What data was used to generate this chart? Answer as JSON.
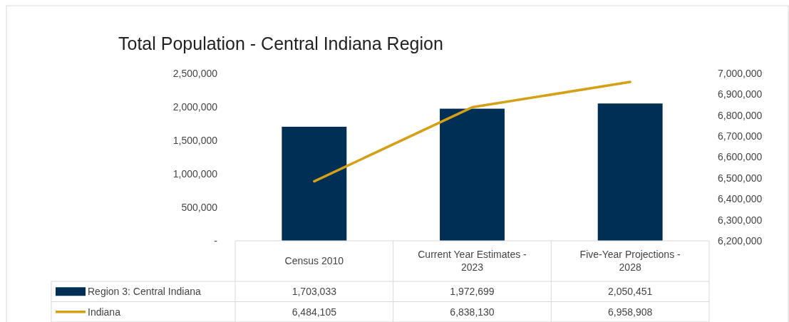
{
  "chart_data": {
    "type": "bar",
    "title": "Total Population - Central Indiana Region",
    "categories": [
      "Census 2010",
      "Current Year Estimates - 2023",
      "Five-Year Projections - 2028"
    ],
    "series": [
      {
        "name": "Region 3: Central Indiana",
        "color": "#002f56",
        "values": [
          1703033,
          1972699,
          2050451
        ],
        "value_labels": [
          "1,703,033",
          "1,972,699",
          "2,050,451"
        ]
      },
      {
        "name": "Indiana",
        "type": "line",
        "axis": "y2",
        "color": "#d4a017",
        "values": [
          6484105,
          6838130,
          6958908
        ],
        "value_labels": [
          "6,484,105",
          "6,838,130",
          "6,958,908"
        ]
      }
    ],
    "ylim": [
      0,
      2500000
    ],
    "yticks": [
      {
        "value": 0,
        "label": "-"
      },
      {
        "value": 500000,
        "label": "500,000"
      },
      {
        "value": 1000000,
        "label": "1,000,000"
      },
      {
        "value": 1500000,
        "label": "1,500,000"
      },
      {
        "value": 2000000,
        "label": "2,000,000"
      },
      {
        "value": 2500000,
        "label": "2,500,000"
      }
    ],
    "y2lim": [
      6200000,
      7000000
    ],
    "y2ticks": [
      {
        "value": 6200000,
        "label": "6,200,000"
      },
      {
        "value": 6300000,
        "label": "6,300,000"
      },
      {
        "value": 6400000,
        "label": "6,400,000"
      },
      {
        "value": 6500000,
        "label": "6,500,000"
      },
      {
        "value": 6600000,
        "label": "6,600,000"
      },
      {
        "value": 6700000,
        "label": "6,700,000"
      },
      {
        "value": 6800000,
        "label": "6,800,000"
      },
      {
        "value": 6900000,
        "label": "6,900,000"
      },
      {
        "value": 7000000,
        "label": "7,000,000"
      }
    ],
    "legend": "bottom",
    "marker": "none",
    "line_style": "solid"
  }
}
